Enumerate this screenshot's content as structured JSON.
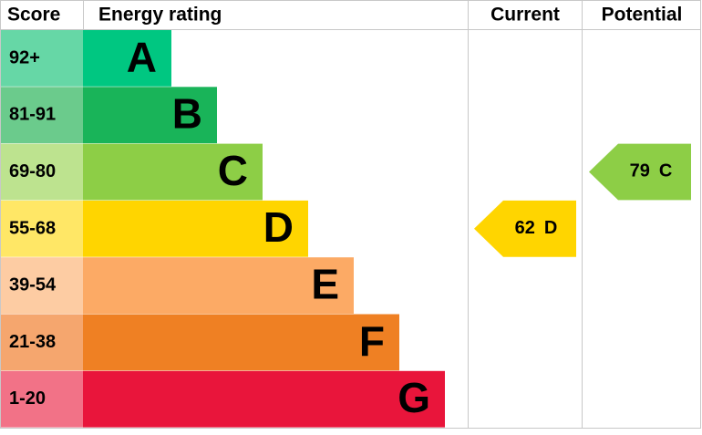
{
  "header": {
    "score": "Score",
    "rating": "Energy rating",
    "current": "Current",
    "potential": "Potential"
  },
  "bands": [
    {
      "score": "92+",
      "letter": "A",
      "color": "#00c781",
      "light": "#66d7a6"
    },
    {
      "score": "81-91",
      "letter": "B",
      "color": "#19b459",
      "light": "#6bcb8c"
    },
    {
      "score": "69-80",
      "letter": "C",
      "color": "#8dce46",
      "light": "#bde38f"
    },
    {
      "score": "55-68",
      "letter": "D",
      "color": "#ffd500",
      "light": "#ffe766"
    },
    {
      "score": "39-54",
      "letter": "E",
      "color": "#fcaa65",
      "light": "#fdcca3"
    },
    {
      "score": "21-38",
      "letter": "F",
      "color": "#ef8023",
      "light": "#f5a66e"
    },
    {
      "score": "1-20",
      "letter": "G",
      "color": "#e9153b",
      "light": "#f27287"
    }
  ],
  "current": {
    "value": 62,
    "rating": "D",
    "color": "#ffd500"
  },
  "potential": {
    "value": 79,
    "rating": "C",
    "color": "#8dce46"
  }
}
